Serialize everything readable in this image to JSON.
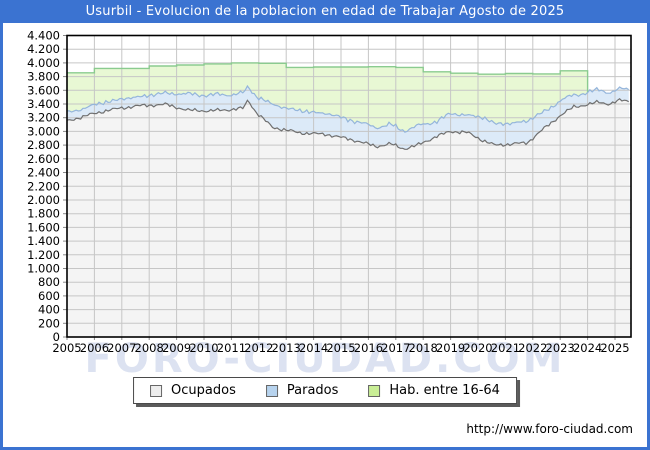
{
  "window": {
    "title": "Usurbil - Evolucion de la poblacion en edad de Trabajar Agosto de 2025",
    "title_bar_color": "#3b73d1",
    "frame_color": "#3b73d1"
  },
  "watermark": "FORO-CIUDAD.COM",
  "footer": {
    "url": "http://www.foro-ciudad.com"
  },
  "legend": {
    "items": [
      {
        "label": "Ocupados",
        "swatch_fill": "#ededed",
        "swatch_border": "#666666"
      },
      {
        "label": "Parados",
        "swatch_fill": "#b7d3ee",
        "swatch_border": "#666666"
      },
      {
        "label": "Hab. entre 16-64",
        "swatch_fill": "#c9ee96",
        "swatch_border": "#666666"
      }
    ]
  },
  "chart_data": {
    "type": "area",
    "title": "Usurbil - Evolucion de la poblacion en edad de Trabajar Agosto de 2025",
    "xlabel": "",
    "ylabel": "",
    "x_range": [
      2005.0,
      2025.583
    ],
    "ylim": [
      0,
      4400
    ],
    "y_tick_step": 200,
    "y_tick_labels": [
      "0",
      "200",
      "400",
      "600",
      "800",
      "1.000",
      "1.200",
      "1.400",
      "1.600",
      "1.800",
      "2.000",
      "2.200",
      "2.400",
      "2.600",
      "2.800",
      "3.000",
      "3.200",
      "3.400",
      "3.600",
      "3.800",
      "4.000",
      "4.200",
      "4.400"
    ],
    "x_ticks": [
      2005,
      2006,
      2007,
      2008,
      2009,
      2010,
      2011,
      2012,
      2013,
      2014,
      2015,
      2016,
      2017,
      2018,
      2019,
      2020,
      2021,
      2022,
      2023,
      2024,
      2025
    ],
    "grid": true,
    "legend_position": "bottom-center",
    "colors": {
      "grid": "#c6c6c6",
      "plot_border": "#000000",
      "hab_line": "#8acb8f",
      "hab_fill": "#e8f8d4",
      "parados_line": "#94b5db",
      "parados_fill": "#dceaf8",
      "ocupados_line": "#6f6f6f",
      "ocupados_fill": "#f4f4f4"
    },
    "series": [
      {
        "name": "Hab. entre 16-64",
        "type": "annual_step",
        "note": "stepped yearly series, data ends at start of 2024",
        "data_end_x": 2024.0,
        "values_by_year": [
          [
            2005,
            3855
          ],
          [
            2006,
            3920
          ],
          [
            2007,
            3920
          ],
          [
            2008,
            3955
          ],
          [
            2009,
            3970
          ],
          [
            2010,
            3985
          ],
          [
            2011,
            4000
          ],
          [
            2012,
            3995
          ],
          [
            2013,
            3935
          ],
          [
            2014,
            3940
          ],
          [
            2015,
            3940
          ],
          [
            2016,
            3945
          ],
          [
            2017,
            3935
          ],
          [
            2018,
            3870
          ],
          [
            2019,
            3850
          ],
          [
            2020,
            3835
          ],
          [
            2021,
            3845
          ],
          [
            2022,
            3840
          ],
          [
            2023,
            3885
          ]
        ]
      },
      {
        "name": "Ocupados",
        "type": "monthly_line",
        "anchors": [
          [
            2005.0,
            3150
          ],
          [
            2005.7,
            3230
          ],
          [
            2006.5,
            3310
          ],
          [
            2007.5,
            3370
          ],
          [
            2008.6,
            3395
          ],
          [
            2009.4,
            3310
          ],
          [
            2010.2,
            3300
          ],
          [
            2011.0,
            3320
          ],
          [
            2011.45,
            3340
          ],
          [
            2011.6,
            3460
          ],
          [
            2011.9,
            3280
          ],
          [
            2012.5,
            3060
          ],
          [
            2013.5,
            2980
          ],
          [
            2014.5,
            2955
          ],
          [
            2015.5,
            2870
          ],
          [
            2016.3,
            2780
          ],
          [
            2016.8,
            2820
          ],
          [
            2017.3,
            2745
          ],
          [
            2017.8,
            2800
          ],
          [
            2018.5,
            2930
          ],
          [
            2019.0,
            3000
          ],
          [
            2019.6,
            2985
          ],
          [
            2020.2,
            2865
          ],
          [
            2020.6,
            2800
          ],
          [
            2021.2,
            2815
          ],
          [
            2021.8,
            2835
          ],
          [
            2022.4,
            3040
          ],
          [
            2023.0,
            3230
          ],
          [
            2023.5,
            3360
          ],
          [
            2024.0,
            3390
          ],
          [
            2024.4,
            3430
          ],
          [
            2024.8,
            3400
          ],
          [
            2025.2,
            3455
          ],
          [
            2025.583,
            3440
          ]
        ]
      },
      {
        "name": "Parados",
        "type": "monthly_line",
        "note": "drawn stacked on top of Ocupados",
        "anchors": [
          [
            2005.0,
            120
          ],
          [
            2005.7,
            120
          ],
          [
            2006.5,
            130
          ],
          [
            2007.5,
            130
          ],
          [
            2008.6,
            165
          ],
          [
            2009.4,
            235
          ],
          [
            2010.2,
            230
          ],
          [
            2011.0,
            220
          ],
          [
            2011.45,
            220
          ],
          [
            2011.6,
            190
          ],
          [
            2011.9,
            240
          ],
          [
            2012.5,
            330
          ],
          [
            2013.5,
            320
          ],
          [
            2014.5,
            305
          ],
          [
            2015.5,
            280
          ],
          [
            2016.3,
            280
          ],
          [
            2016.8,
            280
          ],
          [
            2017.3,
            265
          ],
          [
            2017.8,
            280
          ],
          [
            2018.5,
            220
          ],
          [
            2019.0,
            260
          ],
          [
            2019.6,
            255
          ],
          [
            2020.2,
            335
          ],
          [
            2020.6,
            320
          ],
          [
            2021.2,
            295
          ],
          [
            2021.8,
            325
          ],
          [
            2022.4,
            240
          ],
          [
            2023.0,
            220
          ],
          [
            2023.5,
            170
          ],
          [
            2024.0,
            180
          ],
          [
            2024.4,
            175
          ],
          [
            2024.8,
            170
          ],
          [
            2025.2,
            170
          ],
          [
            2025.583,
            165
          ]
        ]
      }
    ]
  }
}
